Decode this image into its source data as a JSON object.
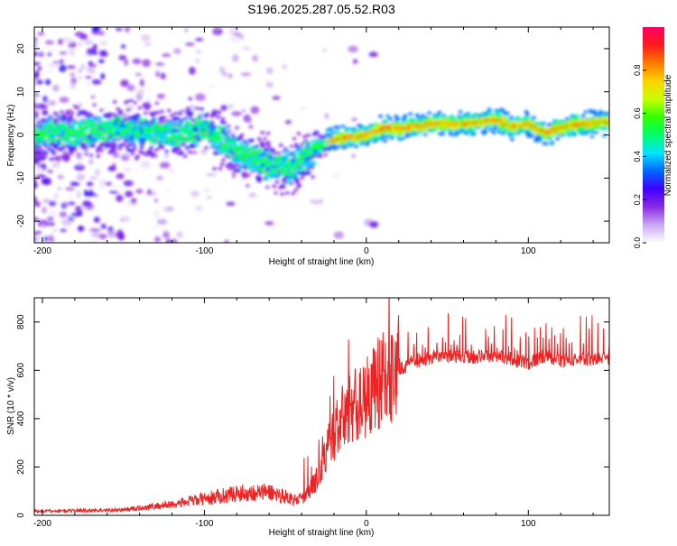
{
  "title": "S196.2025.287.05.52.R03",
  "colors": {
    "axis": "#000000",
    "snr_line": "#ee2222",
    "background": "#ffffff"
  },
  "chart_data": [
    {
      "type": "heatmap",
      "name": "spectrogram",
      "xlabel": "Height of straight line (km)",
      "ylabel": "Frequency (Hz)",
      "xlim": [
        -205,
        150
      ],
      "ylim": [
        -25,
        25
      ],
      "xticks": [
        -200,
        -100,
        0,
        100
      ],
      "yticks": [
        -20,
        -10,
        0,
        10,
        20
      ],
      "ridge": {
        "description_points_x": [
          -205,
          -180,
          -150,
          -120,
          -100,
          -80,
          -60,
          -45,
          -38,
          -30,
          -20,
          -10,
          0,
          10,
          20,
          40,
          60,
          80,
          90,
          100,
          110,
          130,
          150
        ],
        "description_points_y": [
          0,
          0.5,
          1.5,
          0,
          1.5,
          -4,
          -7,
          -7.5,
          -5,
          -3,
          -1,
          -0.5,
          0,
          1.5,
          1.5,
          2.5,
          2.5,
          3.5,
          2,
          2.5,
          0.5,
          2.5,
          3
        ]
      },
      "colorbar": {
        "label": "Normalized spectral amplitude",
        "range": [
          0.0,
          1.0
        ],
        "ticks": [
          "0.0",
          "0.2",
          "0.4",
          "0.6",
          "0.8"
        ],
        "tick_values": [
          0.0,
          0.2,
          0.4,
          0.6,
          0.8
        ],
        "stops": [
          "#ffffff",
          "#c9a6f2",
          "#8a2be2",
          "#3d00ff",
          "#0066ff",
          "#00e5ff",
          "#00ff66",
          "#33ff00",
          "#c8ff00",
          "#ffd200",
          "#ff7a00",
          "#ff1a1a",
          "#ff0066"
        ]
      }
    },
    {
      "type": "line",
      "name": "snr",
      "xlabel": "Height of straight line (km)",
      "ylabel": "SNR (10 * v/v)",
      "xlim": [
        -205,
        150
      ],
      "ylim": [
        0,
        900
      ],
      "xticks": [
        -200,
        -100,
        0,
        100
      ],
      "yticks": [
        0,
        200,
        400,
        600,
        800
      ],
      "trend_x": [
        -205,
        -150,
        -120,
        -100,
        -80,
        -60,
        -45,
        -38,
        -30,
        -25,
        -20,
        -10,
        0,
        10,
        20,
        30,
        40,
        50,
        60,
        80,
        100,
        110,
        120,
        150
      ],
      "trend_y": [
        15,
        20,
        40,
        60,
        80,
        85,
        60,
        70,
        150,
        250,
        330,
        430,
        470,
        540,
        600,
        640,
        650,
        660,
        655,
        660,
        630,
        660,
        640,
        650
      ]
    }
  ]
}
